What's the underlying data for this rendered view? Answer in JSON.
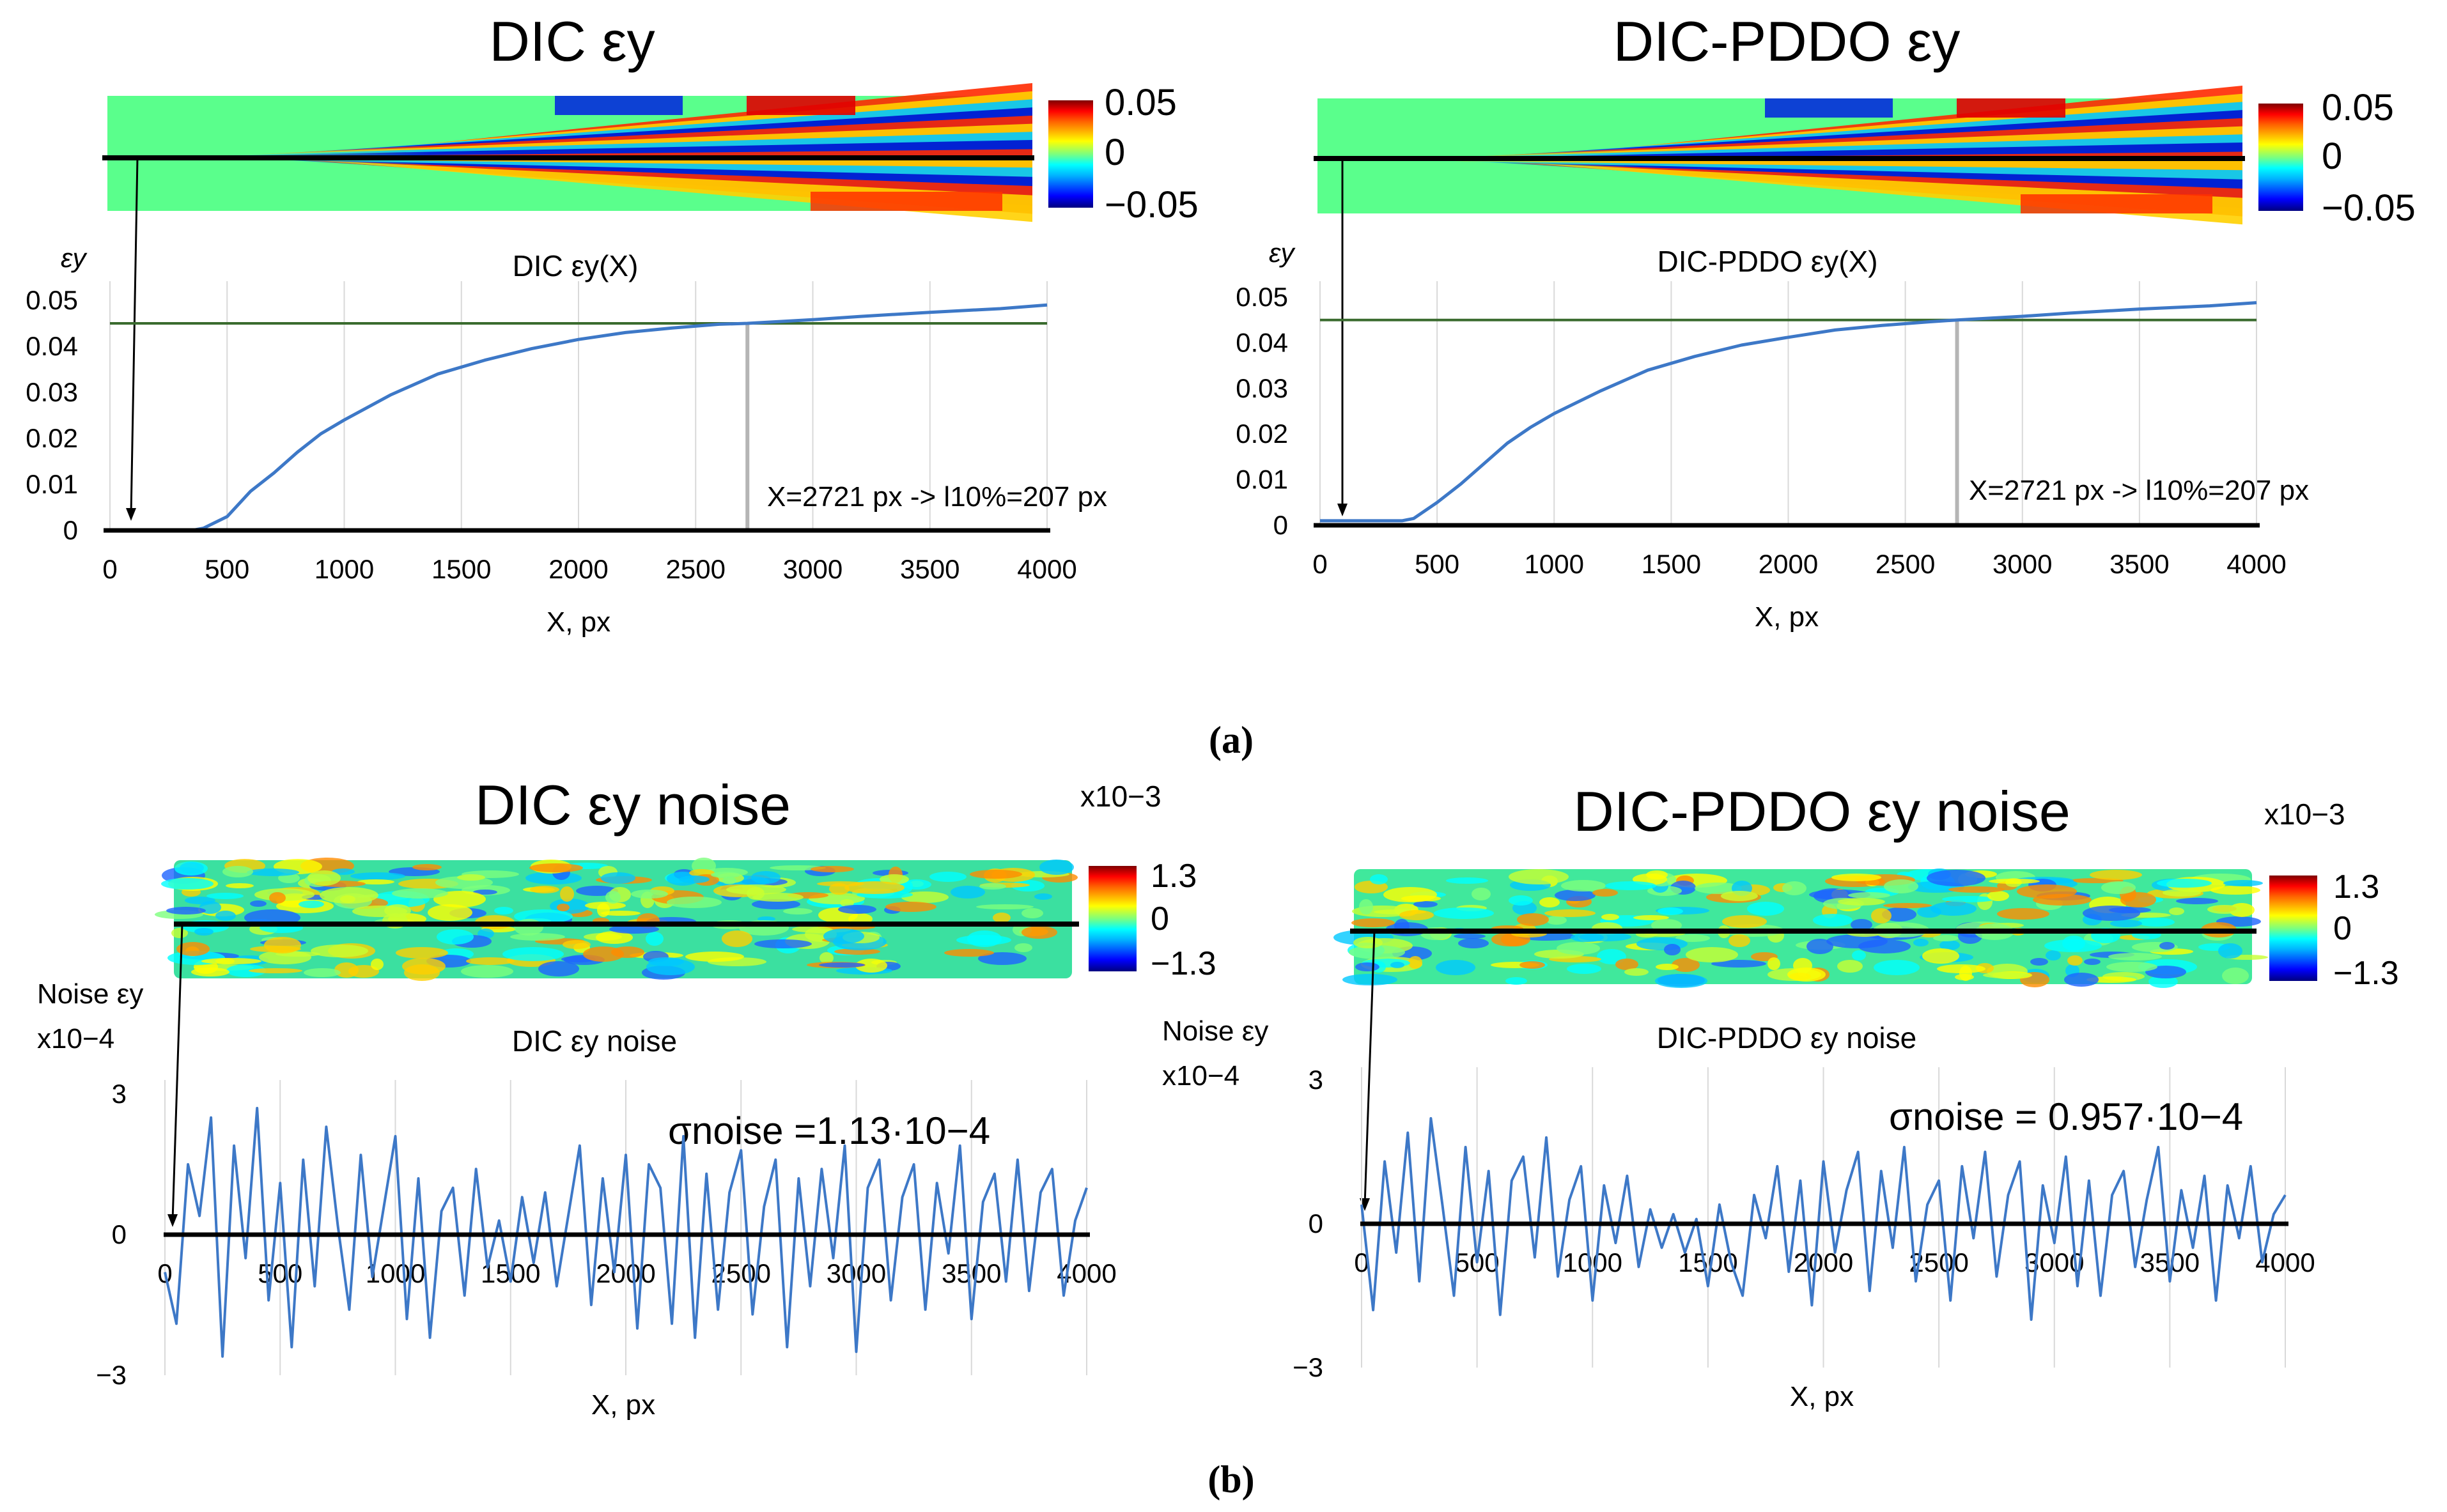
{
  "figure": {
    "label_a": "(a)",
    "label_b": "(b)"
  },
  "colors": {
    "series": "#3d78c7",
    "threshold": "#3a6b2e",
    "marker": "#b5b5b5",
    "axis": "#000000",
    "grid": "#d9d9d9",
    "colormap": [
      "#00007f",
      "#0000ff",
      "#00a0ff",
      "#00ffff",
      "#5aff8c",
      "#c8ff32",
      "#ffff00",
      "#ff9600",
      "#ff0000",
      "#7f0000"
    ]
  },
  "chart_data": [
    {
      "id": "dic_strain",
      "type": "line",
      "field_title": "DIC εy",
      "colorbar": {
        "ticks": [
          "0.05",
          "0",
          "−0.05"
        ],
        "range": [
          -0.05,
          0.05
        ]
      },
      "title": "DIC εy(X)",
      "ylabel": "εy",
      "xlabel": "X, px",
      "x_ticks": [
        "0",
        "500",
        "1000",
        "1500",
        "2000",
        "2500",
        "3000",
        "3500",
        "4000"
      ],
      "y_ticks": [
        "0",
        "0.01",
        "0.02",
        "0.03",
        "0.04",
        "0.05"
      ],
      "xlim": [
        0,
        4000
      ],
      "ylim": [
        0,
        0.05
      ],
      "grid": true,
      "threshold": 0.045,
      "marker_x": 2721,
      "annotation": "X=2721 px -> l10%=207 px",
      "series": [
        {
          "name": "DIC εy(X)",
          "x": [
            0,
            350,
            400,
            500,
            600,
            700,
            800,
            900,
            1000,
            1200,
            1400,
            1600,
            1800,
            2000,
            2200,
            2400,
            2600,
            2721,
            3000,
            3200,
            3500,
            3800,
            4000
          ],
          "y": [
            0,
            0,
            0.0005,
            0.003,
            0.0085,
            0.0125,
            0.017,
            0.021,
            0.024,
            0.0295,
            0.034,
            0.037,
            0.0395,
            0.0415,
            0.043,
            0.044,
            0.0448,
            0.045,
            0.0458,
            0.0465,
            0.0474,
            0.0482,
            0.049
          ]
        }
      ]
    },
    {
      "id": "pddo_strain",
      "type": "line",
      "field_title": "DIC-PDDO εy",
      "colorbar": {
        "ticks": [
          "0.05",
          "0",
          "−0.05"
        ],
        "range": [
          -0.05,
          0.05
        ]
      },
      "title": "DIC-PDDO εy(X)",
      "ylabel": "εy",
      "xlabel": "X, px",
      "x_ticks": [
        "0",
        "500",
        "1000",
        "1500",
        "2000",
        "2500",
        "3000",
        "3500",
        "4000"
      ],
      "y_ticks": [
        "0",
        "0.01",
        "0.02",
        "0.03",
        "0.04",
        "0.05"
      ],
      "xlim": [
        0,
        4000
      ],
      "ylim": [
        0,
        0.05
      ],
      "grid": true,
      "threshold": 0.045,
      "marker_x": 2721,
      "annotation": "X=2721 px -> l10%=207 px",
      "series": [
        {
          "name": "DIC-PDDO εy(X)",
          "x": [
            0,
            350,
            400,
            500,
            600,
            700,
            800,
            900,
            1000,
            1200,
            1400,
            1600,
            1800,
            2000,
            2200,
            2400,
            2600,
            2721,
            3000,
            3200,
            3500,
            3800,
            4000
          ],
          "y": [
            0.001,
            0.001,
            0.0015,
            0.005,
            0.009,
            0.0135,
            0.018,
            0.0215,
            0.0245,
            0.0295,
            0.034,
            0.037,
            0.0395,
            0.0412,
            0.0428,
            0.0438,
            0.0446,
            0.045,
            0.0458,
            0.0465,
            0.0474,
            0.0481,
            0.0488
          ]
        }
      ]
    },
    {
      "id": "dic_noise",
      "type": "line",
      "field_title": "DIC εy noise",
      "colorbar": {
        "ticks": [
          "1.3",
          "0",
          "−1.3"
        ],
        "multiplier": "x10−3",
        "range": [
          -1.3,
          1.3
        ]
      },
      "title": "DIC εy noise",
      "ylabel_1": "Noise εy",
      "ylabel_2": "x10−4",
      "xlabel": "X, px",
      "x_ticks": [
        "0",
        "500",
        "1000",
        "1500",
        "2000",
        "2500",
        "3000",
        "3500",
        "4000"
      ],
      "y_ticks": [
        "3",
        "0",
        "−3"
      ],
      "xlim": [
        0,
        4000
      ],
      "ylim": [
        -3,
        3
      ],
      "grid": true,
      "sigma": "σnoise =1.13·10−4",
      "series": [
        {
          "name": "DIC εy noise",
          "x": [
            0,
            50,
            100,
            150,
            200,
            250,
            300,
            350,
            400,
            450,
            500,
            550,
            600,
            650,
            700,
            750,
            800,
            850,
            900,
            950,
            1000,
            1050,
            1100,
            1150,
            1200,
            1250,
            1300,
            1350,
            1400,
            1450,
            1500,
            1550,
            1600,
            1650,
            1700,
            1750,
            1800,
            1850,
            1900,
            1950,
            2000,
            2050,
            2100,
            2150,
            2200,
            2250,
            2300,
            2350,
            2400,
            2450,
            2500,
            2550,
            2600,
            2650,
            2700,
            2750,
            2800,
            2850,
            2900,
            2950,
            3000,
            3050,
            3100,
            3150,
            3200,
            3250,
            3300,
            3350,
            3400,
            3450,
            3500,
            3550,
            3600,
            3650,
            3700,
            3750,
            3800,
            3850,
            3900,
            3950,
            4000
          ],
          "y": [
            -0.8,
            -1.9,
            1.5,
            0.4,
            2.5,
            -2.6,
            1.9,
            -0.5,
            2.7,
            -1.4,
            1.1,
            -2.4,
            1.6,
            -1.1,
            2.3,
            0.2,
            -1.6,
            1.7,
            -0.9,
            0.6,
            2.1,
            -1.8,
            1.2,
            -2.2,
            0.5,
            1.0,
            -1.3,
            1.4,
            -0.7,
            0.3,
            -1.0,
            0.8,
            -0.6,
            0.9,
            -1.1,
            0.4,
            1.9,
            -1.5,
            1.2,
            -0.8,
            1.7,
            -2.0,
            1.5,
            1.0,
            -1.9,
            2.1,
            -2.2,
            1.3,
            -1.6,
            0.9,
            1.8,
            -1.7,
            0.6,
            1.6,
            -2.4,
            1.2,
            -1.1,
            1.4,
            -0.5,
            1.9,
            -2.5,
            1.0,
            1.6,
            -1.4,
            0.8,
            1.5,
            -1.6,
            1.1,
            -0.4,
            1.9,
            -1.8,
            0.7,
            1.3,
            -1.0,
            1.6,
            -1.2,
            0.9,
            1.4,
            -1.3,
            0.3,
            1.0
          ]
        }
      ]
    },
    {
      "id": "pddo_noise",
      "type": "line",
      "field_title": "DIC-PDDO εy noise",
      "colorbar": {
        "ticks": [
          "1.3",
          "0",
          "−1.3"
        ],
        "multiplier": "x10−3",
        "range": [
          -1.3,
          1.3
        ]
      },
      "title": "DIC-PDDO εy noise",
      "ylabel_1": "Noise εy",
      "ylabel_2": "x10−4",
      "xlabel": "X, px",
      "x_ticks": [
        "0",
        "500",
        "1000",
        "1500",
        "2000",
        "2500",
        "3000",
        "3500",
        "4000"
      ],
      "y_ticks": [
        "3",
        "0",
        "−3"
      ],
      "xlim": [
        0,
        4000
      ],
      "ylim": [
        -3,
        3
      ],
      "grid": true,
      "sigma": "σnoise = 0.957·10−4",
      "series": [
        {
          "name": "DIC-PDDO εy noise",
          "x": [
            0,
            50,
            100,
            150,
            200,
            250,
            300,
            350,
            400,
            450,
            500,
            550,
            600,
            650,
            700,
            750,
            800,
            850,
            900,
            950,
            1000,
            1050,
            1100,
            1150,
            1200,
            1250,
            1300,
            1350,
            1400,
            1450,
            1500,
            1550,
            1600,
            1650,
            1700,
            1750,
            1800,
            1850,
            1900,
            1950,
            2000,
            2050,
            2100,
            2150,
            2200,
            2250,
            2300,
            2350,
            2400,
            2450,
            2500,
            2550,
            2600,
            2650,
            2700,
            2750,
            2800,
            2850,
            2900,
            2950,
            3000,
            3050,
            3100,
            3150,
            3200,
            3250,
            3300,
            3350,
            3400,
            3450,
            3500,
            3550,
            3600,
            3650,
            3700,
            3750,
            3800,
            3850,
            3900,
            3950,
            4000
          ],
          "y": [
            0.4,
            -1.8,
            1.3,
            -0.6,
            1.9,
            -1.2,
            2.2,
            0.4,
            -1.5,
            1.6,
            -0.8,
            1.1,
            -1.9,
            0.9,
            1.4,
            -0.7,
            1.8,
            -1.1,
            0.5,
            1.2,
            -1.6,
            0.8,
            -0.4,
            1.0,
            -0.9,
            0.3,
            -0.5,
            0.2,
            -0.6,
            0.1,
            -1.3,
            0.4,
            -0.8,
            -1.5,
            0.6,
            -0.3,
            1.2,
            -1.0,
            0.9,
            -1.7,
            1.3,
            -0.6,
            0.7,
            1.5,
            -1.4,
            1.1,
            -0.5,
            1.6,
            -1.2,
            0.4,
            0.9,
            -1.6,
            1.2,
            -0.3,
            1.5,
            -1.1,
            0.6,
            1.3,
            -2.0,
            0.8,
            -0.4,
            1.4,
            -1.3,
            0.9,
            -1.5,
            0.6,
            1.1,
            -0.9,
            0.5,
            1.6,
            -1.2,
            0.7,
            -0.5,
            1.0,
            -1.6,
            0.8,
            -0.3,
            1.2,
            -0.8,
            0.2,
            0.6
          ]
        }
      ]
    }
  ]
}
